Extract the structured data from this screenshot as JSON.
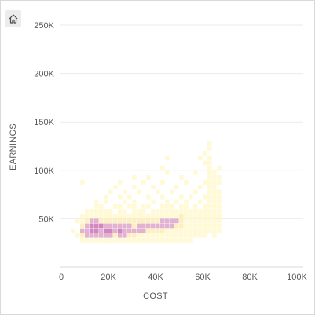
{
  "toolbar": {
    "home_icon": "home-icon"
  },
  "chart_data": {
    "type": "heatmap",
    "xlabel": "COST",
    "ylabel": "EARNINGS",
    "xlim": [
      0,
      100000
    ],
    "ylim": [
      0,
      250000
    ],
    "x_ticks": [
      "0",
      "20K",
      "40K",
      "60K",
      "80K",
      "100K"
    ],
    "y_ticks": [
      "50K",
      "100K",
      "150K",
      "200K",
      "250K"
    ],
    "bin_size": {
      "x": 2000,
      "y": 5000
    },
    "grid": "horizontal",
    "color_scale": [
      "#fff9d6",
      "#fcf0c2",
      "#e3b2d1",
      "#d387c0",
      "#b94aa0",
      "#8f1f7e"
    ],
    "bins_note_levels": "level 1 = lowest density, 6 = highest",
    "cells": [
      [
        8,
        25,
        1
      ],
      [
        10,
        25,
        1
      ],
      [
        12,
        25,
        1
      ],
      [
        14,
        25,
        1
      ],
      [
        16,
        25,
        1
      ],
      [
        18,
        25,
        1
      ],
      [
        20,
        25,
        1
      ],
      [
        22,
        25,
        1
      ],
      [
        24,
        25,
        1
      ],
      [
        26,
        25,
        1
      ],
      [
        28,
        25,
        1
      ],
      [
        30,
        25,
        1
      ],
      [
        32,
        25,
        1
      ],
      [
        34,
        25,
        1
      ],
      [
        36,
        25,
        1
      ],
      [
        38,
        25,
        1
      ],
      [
        40,
        25,
        1
      ],
      [
        42,
        25,
        1
      ],
      [
        44,
        25,
        1
      ],
      [
        46,
        25,
        1
      ],
      [
        48,
        25,
        1
      ],
      [
        50,
        25,
        1
      ],
      [
        52,
        25,
        1
      ],
      [
        54,
        25,
        1
      ],
      [
        6,
        30,
        1
      ],
      [
        8,
        30,
        2
      ],
      [
        10,
        30,
        3
      ],
      [
        12,
        30,
        3
      ],
      [
        14,
        30,
        3
      ],
      [
        16,
        30,
        3
      ],
      [
        18,
        30,
        3
      ],
      [
        20,
        30,
        3
      ],
      [
        22,
        30,
        2
      ],
      [
        24,
        30,
        3
      ],
      [
        26,
        30,
        3
      ],
      [
        28,
        30,
        2
      ],
      [
        30,
        30,
        2
      ],
      [
        32,
        30,
        1
      ],
      [
        34,
        30,
        1
      ],
      [
        36,
        30,
        1
      ],
      [
        38,
        30,
        1
      ],
      [
        40,
        30,
        1
      ],
      [
        42,
        30,
        1
      ],
      [
        44,
        30,
        1
      ],
      [
        46,
        30,
        1
      ],
      [
        48,
        30,
        1
      ],
      [
        50,
        30,
        1
      ],
      [
        52,
        30,
        1
      ],
      [
        54,
        30,
        1
      ],
      [
        56,
        30,
        1
      ],
      [
        58,
        30,
        1
      ],
      [
        60,
        30,
        1
      ],
      [
        64,
        30,
        1
      ],
      [
        4,
        35,
        1
      ],
      [
        8,
        35,
        3
      ],
      [
        10,
        35,
        3
      ],
      [
        12,
        35,
        4
      ],
      [
        14,
        35,
        4
      ],
      [
        16,
        35,
        3
      ],
      [
        18,
        35,
        4
      ],
      [
        20,
        35,
        4
      ],
      [
        22,
        35,
        3
      ],
      [
        24,
        35,
        4
      ],
      [
        26,
        35,
        3
      ],
      [
        28,
        35,
        3
      ],
      [
        30,
        35,
        3
      ],
      [
        32,
        35,
        3
      ],
      [
        34,
        35,
        3
      ],
      [
        36,
        35,
        2
      ],
      [
        38,
        35,
        2
      ],
      [
        40,
        35,
        2
      ],
      [
        42,
        35,
        2
      ],
      [
        44,
        35,
        1
      ],
      [
        46,
        35,
        1
      ],
      [
        48,
        35,
        1
      ],
      [
        50,
        35,
        1
      ],
      [
        52,
        35,
        1
      ],
      [
        54,
        35,
        1
      ],
      [
        56,
        35,
        1
      ],
      [
        58,
        35,
        1
      ],
      [
        60,
        35,
        1
      ],
      [
        62,
        35,
        1
      ],
      [
        64,
        35,
        1
      ],
      [
        66,
        35,
        1
      ],
      [
        8,
        40,
        2
      ],
      [
        10,
        40,
        3
      ],
      [
        12,
        40,
        4
      ],
      [
        14,
        40,
        4
      ],
      [
        16,
        40,
        4
      ],
      [
        18,
        40,
        3
      ],
      [
        20,
        40,
        3
      ],
      [
        22,
        40,
        3
      ],
      [
        24,
        40,
        3
      ],
      [
        26,
        40,
        3
      ],
      [
        28,
        40,
        3
      ],
      [
        30,
        40,
        2
      ],
      [
        32,
        40,
        3
      ],
      [
        34,
        40,
        3
      ],
      [
        36,
        40,
        3
      ],
      [
        38,
        40,
        3
      ],
      [
        40,
        40,
        3
      ],
      [
        42,
        40,
        3
      ],
      [
        44,
        40,
        3
      ],
      [
        46,
        40,
        3
      ],
      [
        48,
        40,
        2
      ],
      [
        50,
        40,
        2
      ],
      [
        52,
        40,
        1
      ],
      [
        54,
        40,
        1
      ],
      [
        56,
        40,
        1
      ],
      [
        58,
        40,
        1
      ],
      [
        60,
        40,
        1
      ],
      [
        62,
        40,
        1
      ],
      [
        64,
        40,
        1
      ],
      [
        66,
        40,
        1
      ],
      [
        6,
        45,
        1
      ],
      [
        8,
        45,
        1
      ],
      [
        10,
        45,
        2
      ],
      [
        12,
        45,
        3
      ],
      [
        14,
        45,
        3
      ],
      [
        16,
        45,
        2
      ],
      [
        18,
        45,
        2
      ],
      [
        20,
        45,
        2
      ],
      [
        22,
        45,
        2
      ],
      [
        24,
        45,
        2
      ],
      [
        26,
        45,
        2
      ],
      [
        28,
        45,
        2
      ],
      [
        30,
        45,
        2
      ],
      [
        32,
        45,
        2
      ],
      [
        34,
        45,
        2
      ],
      [
        36,
        45,
        2
      ],
      [
        38,
        45,
        2
      ],
      [
        40,
        45,
        2
      ],
      [
        42,
        45,
        3
      ],
      [
        44,
        45,
        3
      ],
      [
        46,
        45,
        3
      ],
      [
        48,
        45,
        3
      ],
      [
        50,
        45,
        2
      ],
      [
        52,
        45,
        1
      ],
      [
        54,
        45,
        1
      ],
      [
        56,
        45,
        1
      ],
      [
        58,
        45,
        1
      ],
      [
        60,
        45,
        1
      ],
      [
        62,
        45,
        1
      ],
      [
        64,
        45,
        1
      ],
      [
        66,
        45,
        1
      ],
      [
        8,
        50,
        1
      ],
      [
        10,
        50,
        1
      ],
      [
        12,
        50,
        1
      ],
      [
        14,
        50,
        1
      ],
      [
        16,
        50,
        1
      ],
      [
        18,
        50,
        1
      ],
      [
        20,
        50,
        1
      ],
      [
        22,
        50,
        1
      ],
      [
        24,
        50,
        1
      ],
      [
        26,
        50,
        1
      ],
      [
        28,
        50,
        1
      ],
      [
        30,
        50,
        1
      ],
      [
        32,
        50,
        1
      ],
      [
        34,
        50,
        1
      ],
      [
        36,
        50,
        1
      ],
      [
        38,
        50,
        1
      ],
      [
        40,
        50,
        1
      ],
      [
        42,
        50,
        1
      ],
      [
        44,
        50,
        1
      ],
      [
        46,
        50,
        1
      ],
      [
        48,
        50,
        1
      ],
      [
        50,
        50,
        2
      ],
      [
        52,
        50,
        1
      ],
      [
        54,
        50,
        1
      ],
      [
        56,
        50,
        1
      ],
      [
        58,
        50,
        1
      ],
      [
        60,
        50,
        1
      ],
      [
        62,
        50,
        1
      ],
      [
        64,
        50,
        1
      ],
      [
        66,
        50,
        1
      ],
      [
        10,
        55,
        1
      ],
      [
        12,
        55,
        1
      ],
      [
        14,
        55,
        1
      ],
      [
        16,
        55,
        1
      ],
      [
        18,
        55,
        1
      ],
      [
        20,
        55,
        1
      ],
      [
        24,
        55,
        1
      ],
      [
        26,
        55,
        1
      ],
      [
        30,
        55,
        1
      ],
      [
        32,
        55,
        1
      ],
      [
        34,
        55,
        1
      ],
      [
        38,
        55,
        1
      ],
      [
        40,
        55,
        1
      ],
      [
        42,
        55,
        1
      ],
      [
        44,
        55,
        1
      ],
      [
        46,
        55,
        1
      ],
      [
        48,
        55,
        1
      ],
      [
        50,
        55,
        1
      ],
      [
        52,
        55,
        1
      ],
      [
        54,
        55,
        1
      ],
      [
        56,
        55,
        1
      ],
      [
        58,
        55,
        1
      ],
      [
        60,
        55,
        1
      ],
      [
        62,
        55,
        1
      ],
      [
        64,
        55,
        1
      ],
      [
        66,
        55,
        1
      ],
      [
        14,
        60,
        1
      ],
      [
        16,
        60,
        1
      ],
      [
        22,
        60,
        1
      ],
      [
        24,
        60,
        1
      ],
      [
        28,
        60,
        1
      ],
      [
        30,
        60,
        1
      ],
      [
        34,
        60,
        1
      ],
      [
        36,
        60,
        1
      ],
      [
        42,
        60,
        1
      ],
      [
        44,
        60,
        1
      ],
      [
        46,
        60,
        1
      ],
      [
        50,
        60,
        1
      ],
      [
        52,
        60,
        1
      ],
      [
        56,
        60,
        1
      ],
      [
        60,
        60,
        1
      ],
      [
        62,
        60,
        1
      ],
      [
        64,
        60,
        1
      ],
      [
        66,
        60,
        1
      ],
      [
        14,
        65,
        1
      ],
      [
        18,
        65,
        1
      ],
      [
        26,
        65,
        1
      ],
      [
        30,
        65,
        1
      ],
      [
        38,
        65,
        1
      ],
      [
        44,
        65,
        1
      ],
      [
        48,
        65,
        1
      ],
      [
        52,
        65,
        1
      ],
      [
        58,
        65,
        1
      ],
      [
        62,
        65,
        1
      ],
      [
        64,
        65,
        1
      ],
      [
        66,
        65,
        1
      ],
      [
        18,
        70,
        1
      ],
      [
        24,
        70,
        1
      ],
      [
        28,
        70,
        1
      ],
      [
        36,
        70,
        1
      ],
      [
        42,
        70,
        1
      ],
      [
        50,
        70,
        1
      ],
      [
        54,
        70,
        1
      ],
      [
        60,
        70,
        1
      ],
      [
        62,
        70,
        1
      ],
      [
        64,
        70,
        1
      ],
      [
        66,
        70,
        1
      ],
      [
        20,
        75,
        1
      ],
      [
        26,
        75,
        1
      ],
      [
        32,
        75,
        1
      ],
      [
        40,
        75,
        1
      ],
      [
        46,
        75,
        1
      ],
      [
        56,
        75,
        1
      ],
      [
        62,
        75,
        1
      ],
      [
        64,
        75,
        1
      ],
      [
        66,
        75,
        1
      ],
      [
        22,
        80,
        1
      ],
      [
        30,
        80,
        1
      ],
      [
        38,
        80,
        1
      ],
      [
        48,
        80,
        1
      ],
      [
        58,
        80,
        1
      ],
      [
        62,
        80,
        1
      ],
      [
        64,
        80,
        1
      ],
      [
        8,
        85,
        1
      ],
      [
        24,
        85,
        1
      ],
      [
        34,
        85,
        1
      ],
      [
        42,
        85,
        1
      ],
      [
        52,
        85,
        1
      ],
      [
        60,
        85,
        1
      ],
      [
        62,
        85,
        1
      ],
      [
        64,
        85,
        1
      ],
      [
        66,
        85,
        1
      ],
      [
        30,
        90,
        1
      ],
      [
        36,
        90,
        1
      ],
      [
        50,
        90,
        1
      ],
      [
        62,
        90,
        1
      ],
      [
        64,
        90,
        1
      ],
      [
        66,
        90,
        1
      ],
      [
        44,
        95,
        1
      ],
      [
        56,
        95,
        1
      ],
      [
        62,
        95,
        1
      ],
      [
        64,
        95,
        1
      ],
      [
        42,
        100,
        1
      ],
      [
        62,
        100,
        1
      ],
      [
        66,
        100,
        1
      ],
      [
        60,
        105,
        1
      ],
      [
        62,
        105,
        1
      ],
      [
        44,
        110,
        1
      ],
      [
        58,
        110,
        1
      ],
      [
        62,
        110,
        1
      ],
      [
        60,
        115,
        1
      ],
      [
        62,
        120,
        1
      ],
      [
        62,
        125,
        1
      ]
    ]
  }
}
